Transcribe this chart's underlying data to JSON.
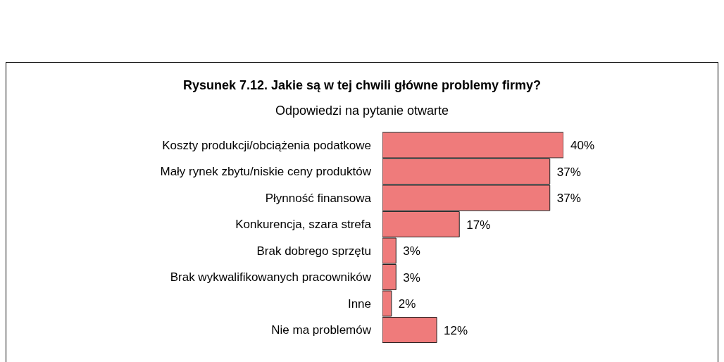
{
  "chart_data": {
    "type": "bar",
    "orientation": "horizontal",
    "title": "Rysunek 7.12. Jakie są w tej chwili główne problemy firmy?",
    "subtitle": "Odpowiedzi na pytanie otwarte",
    "categories": [
      "Koszty produkcji/obciążenia podatkowe",
      "Mały rynek zbytu/niskie ceny produktów",
      "Płynność finansowa",
      "Konkurencja, szara strefa",
      "Brak dobrego sprzętu",
      "Brak wykwalifikowanych pracowników",
      "Inne",
      "Nie ma problemów"
    ],
    "values": [
      40,
      37,
      37,
      17,
      3,
      3,
      2,
      12
    ],
    "value_labels": [
      "40%",
      "37%",
      "37%",
      "17%",
      "3%",
      "3%",
      "2%",
      "12%"
    ],
    "color": "#ef7b7b",
    "grid": false,
    "legend": false
  }
}
